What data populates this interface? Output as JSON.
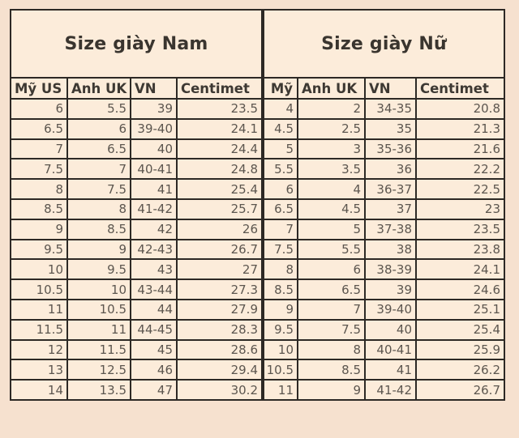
{
  "page": {
    "background": "#f6e1cf",
    "table_background": "#fcecda",
    "border_color": "#2d2925",
    "text_color": "#5c564f",
    "header_text_color": "#3e3933"
  },
  "tables": [
    {
      "id": "men",
      "title": "Size giày Nam",
      "columns": [
        "Mỹ US",
        "Anh UK",
        "VN",
        "Centimet"
      ],
      "rows": [
        [
          "6",
          "5.5",
          "39",
          "23.5"
        ],
        [
          "6.5",
          "6",
          "39-40",
          "24.1"
        ],
        [
          "7",
          "6.5",
          "40",
          "24.4"
        ],
        [
          "7.5",
          "7",
          "40-41",
          "24.8"
        ],
        [
          "8",
          "7.5",
          "41",
          "25.4"
        ],
        [
          "8.5",
          "8",
          "41-42",
          "25.7"
        ],
        [
          "9",
          "8.5",
          "42",
          "26"
        ],
        [
          "9.5",
          "9",
          "42-43",
          "26.7"
        ],
        [
          "10",
          "9.5",
          "43",
          "27"
        ],
        [
          "10.5",
          "10",
          "43-44",
          "27.3"
        ],
        [
          "11",
          "10.5",
          "44",
          "27.9"
        ],
        [
          "11.5",
          "11",
          "44-45",
          "28.3"
        ],
        [
          "12",
          "11.5",
          "45",
          "28.6"
        ],
        [
          "13",
          "12.5",
          "46",
          "29.4"
        ],
        [
          "14",
          "13.5",
          "47",
          "30.2"
        ]
      ]
    },
    {
      "id": "women",
      "title": "Size giày Nữ",
      "columns": [
        "Mỹ",
        "Anh UK",
        "VN",
        "Centimet"
      ],
      "rows": [
        [
          "4",
          "2",
          "34-35",
          "20.8"
        ],
        [
          "4.5",
          "2.5",
          "35",
          "21.3"
        ],
        [
          "5",
          "3",
          "35-36",
          "21.6"
        ],
        [
          "5.5",
          "3.5",
          "36",
          "22.2"
        ],
        [
          "6",
          "4",
          "36-37",
          "22.5"
        ],
        [
          "6.5",
          "4.5",
          "37",
          "23"
        ],
        [
          "7",
          "5",
          "37-38",
          "23.5"
        ],
        [
          "7.5",
          "5.5",
          "38",
          "23.8"
        ],
        [
          "8",
          "6",
          "38-39",
          "24.1"
        ],
        [
          "8.5",
          "6.5",
          "39",
          "24.6"
        ],
        [
          "9",
          "7",
          "39-40",
          "25.1"
        ],
        [
          "9.5",
          "7.5",
          "40",
          "25.4"
        ],
        [
          "10",
          "8",
          "40-41",
          "25.9"
        ],
        [
          "10.5",
          "8.5",
          "41",
          "26.2"
        ],
        [
          "11",
          "9",
          "41-42",
          "26.7"
        ]
      ]
    }
  ]
}
